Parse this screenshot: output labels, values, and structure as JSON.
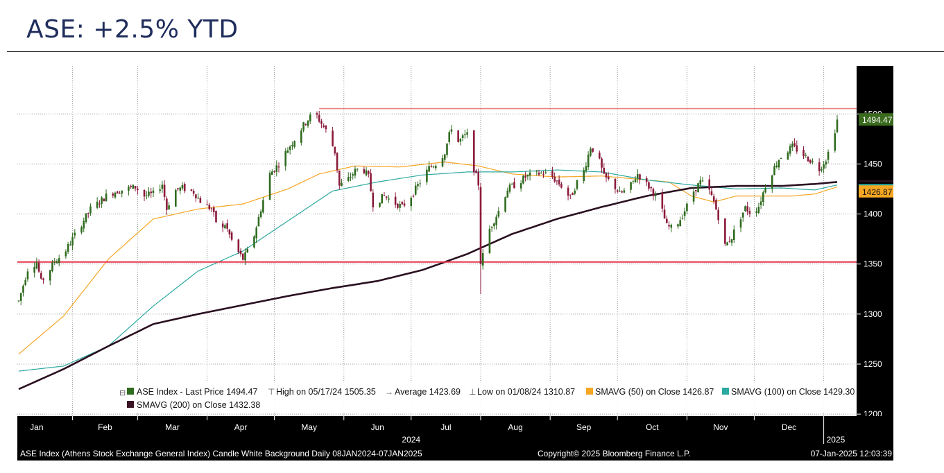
{
  "page": {
    "title": "ASE: +2.5% YTD"
  },
  "legend": {
    "last_price": "ASE Index - Last Price  1494.47",
    "high": "High on 05/17/24  1505.35",
    "average": "Average  1423.69",
    "low": "Low on 01/08/24  1310.87",
    "sma50": "SMAVG (50)   on Close  1426.87",
    "sma100": "SMAVG (100)   on Close  1429.30",
    "sma200": "SMAVG (200)   on Close  1432.38"
  },
  "footer": {
    "description": "ASE Index (Athens Stock Exchange General Index) Candle White Background  Daily 08JAN2024-07JAN2025",
    "copyright": "Copyright© 2025 Bloomberg Finance L.P.",
    "timestamp": "07-Jan-2025 12:03:39"
  },
  "chart_data": {
    "type": "candlestick",
    "x_tick_labels": [
      "Jan",
      "Feb",
      "Mar",
      "Apr",
      "May",
      "Jun",
      "Jul",
      "Aug",
      "Sep",
      "Oct",
      "Nov",
      "Dec"
    ],
    "year_labels": [
      "2024",
      "2025"
    ],
    "y_tick_labels": [
      "1200",
      "1250",
      "1300",
      "1350",
      "1400",
      "1450",
      "1500"
    ],
    "ylim": [
      1198,
      1548
    ],
    "price_tags": {
      "last": "1494.47",
      "sma50": "1426.87"
    },
    "horizontal_lines": [
      1352,
      1505.35
    ],
    "grid": true,
    "legend_position": "bottom",
    "colors": {
      "up": "#2f6b1f",
      "down": "#8b1a3a",
      "sma50": "#f5a623",
      "sma100": "#2aa9a0",
      "sma200": "#2a1020",
      "support": "#e8344a",
      "resistance": "#f08080",
      "axis_bg": "#000000",
      "last_tag": "#3a6a1e",
      "sma50_tag": "#f5a623"
    },
    "anchors": [
      [
        0,
        1313
      ],
      [
        4,
        1345
      ],
      [
        8,
        1352
      ],
      [
        10,
        1332
      ],
      [
        14,
        1345
      ],
      [
        16,
        1353
      ],
      [
        20,
        1360
      ],
      [
        24,
        1375
      ],
      [
        28,
        1390
      ],
      [
        32,
        1405
      ],
      [
        36,
        1412
      ],
      [
        40,
        1420
      ],
      [
        44,
        1423
      ],
      [
        48,
        1425
      ],
      [
        52,
        1427
      ],
      [
        56,
        1418
      ],
      [
        60,
        1420
      ],
      [
        64,
        1430
      ],
      [
        66,
        1405
      ],
      [
        69,
        1423
      ],
      [
        73,
        1426
      ],
      [
        78,
        1422
      ],
      [
        82,
        1410
      ],
      [
        86,
        1405
      ],
      [
        90,
        1380
      ],
      [
        92,
        1390
      ],
      [
        96,
        1368
      ],
      [
        100,
        1355
      ],
      [
        104,
        1370
      ],
      [
        108,
        1405
      ],
      [
        112,
        1440
      ],
      [
        116,
        1450
      ],
      [
        120,
        1465
      ],
      [
        124,
        1478
      ],
      [
        128,
        1492
      ],
      [
        132,
        1502
      ],
      [
        134,
        1494
      ],
      [
        138,
        1480
      ],
      [
        141,
        1462
      ],
      [
        143,
        1428
      ],
      [
        147,
        1435
      ],
      [
        150,
        1443
      ],
      [
        153,
        1447
      ],
      [
        156,
        1437
      ],
      [
        158,
        1410
      ],
      [
        163,
        1418
      ],
      [
        167,
        1412
      ],
      [
        171,
        1407
      ],
      [
        175,
        1418
      ],
      [
        179,
        1432
      ],
      [
        183,
        1446
      ],
      [
        187,
        1452
      ],
      [
        190,
        1462
      ],
      [
        193,
        1487
      ],
      [
        196,
        1472
      ],
      [
        199,
        1478
      ],
      [
        201,
        1480
      ],
      [
        203,
        1445
      ],
      [
        205,
        1430
      ],
      [
        206,
        1352
      ],
      [
        208,
        1365
      ],
      [
        210,
        1385
      ],
      [
        214,
        1403
      ],
      [
        218,
        1425
      ],
      [
        222,
        1430
      ],
      [
        226,
        1437
      ],
      [
        230,
        1440
      ],
      [
        234,
        1441
      ],
      [
        238,
        1437
      ],
      [
        242,
        1428
      ],
      [
        246,
        1416
      ],
      [
        249,
        1432
      ],
      [
        252,
        1443
      ],
      [
        255,
        1467
      ],
      [
        258,
        1460
      ],
      [
        261,
        1437
      ],
      [
        265,
        1430
      ],
      [
        268,
        1420
      ],
      [
        272,
        1425
      ],
      [
        276,
        1440
      ],
      [
        279,
        1432
      ],
      [
        282,
        1425
      ],
      [
        286,
        1410
      ],
      [
        289,
        1388
      ],
      [
        292,
        1385
      ],
      [
        295,
        1395
      ],
      [
        298,
        1408
      ],
      [
        301,
        1423
      ],
      [
        304,
        1432
      ],
      [
        307,
        1428
      ],
      [
        310,
        1412
      ],
      [
        313,
        1390
      ],
      [
        315,
        1368
      ],
      [
        318,
        1377
      ],
      [
        321,
        1393
      ],
      [
        324,
        1406
      ],
      [
        327,
        1400
      ],
      [
        330,
        1408
      ],
      [
        333,
        1428
      ],
      [
        336,
        1442
      ],
      [
        339,
        1455
      ],
      [
        342,
        1462
      ],
      [
        345,
        1467
      ],
      [
        348,
        1463
      ],
      [
        351,
        1457
      ],
      [
        354,
        1452
      ],
      [
        357,
        1445
      ],
      [
        360,
        1455
      ],
      [
        363,
        1474
      ],
      [
        365,
        1494
      ]
    ],
    "sma50": [
      [
        0,
        1260
      ],
      [
        20,
        1298
      ],
      [
        40,
        1355
      ],
      [
        60,
        1395
      ],
      [
        80,
        1405
      ],
      [
        100,
        1410
      ],
      [
        120,
        1425
      ],
      [
        134,
        1440
      ],
      [
        150,
        1448
      ],
      [
        170,
        1447
      ],
      [
        190,
        1452
      ],
      [
        205,
        1448
      ],
      [
        220,
        1440
      ],
      [
        240,
        1437
      ],
      [
        260,
        1438
      ],
      [
        275,
        1435
      ],
      [
        290,
        1432
      ],
      [
        300,
        1418
      ],
      [
        310,
        1412
      ],
      [
        320,
        1418
      ],
      [
        330,
        1418
      ],
      [
        345,
        1418
      ],
      [
        355,
        1420
      ],
      [
        365,
        1427
      ]
    ],
    "sma100": [
      [
        0,
        1243
      ],
      [
        20,
        1248
      ],
      [
        40,
        1268
      ],
      [
        60,
        1308
      ],
      [
        80,
        1343
      ],
      [
        100,
        1363
      ],
      [
        120,
        1393
      ],
      [
        140,
        1423
      ],
      [
        160,
        1432
      ],
      [
        180,
        1439
      ],
      [
        200,
        1442
      ],
      [
        220,
        1442
      ],
      [
        240,
        1444
      ],
      [
        260,
        1442
      ],
      [
        280,
        1434
      ],
      [
        300,
        1429
      ],
      [
        320,
        1425
      ],
      [
        340,
        1426
      ],
      [
        355,
        1424
      ],
      [
        365,
        1429
      ]
    ],
    "sma200": [
      [
        0,
        1225
      ],
      [
        20,
        1245
      ],
      [
        40,
        1268
      ],
      [
        60,
        1290
      ],
      [
        80,
        1300
      ],
      [
        100,
        1309
      ],
      [
        120,
        1318
      ],
      [
        140,
        1326
      ],
      [
        160,
        1333
      ],
      [
        180,
        1344
      ],
      [
        200,
        1360
      ],
      [
        220,
        1380
      ],
      [
        240,
        1395
      ],
      [
        260,
        1407
      ],
      [
        280,
        1418
      ],
      [
        300,
        1426
      ],
      [
        320,
        1428
      ],
      [
        340,
        1428
      ],
      [
        355,
        1430
      ],
      [
        365,
        1432
      ]
    ]
  }
}
